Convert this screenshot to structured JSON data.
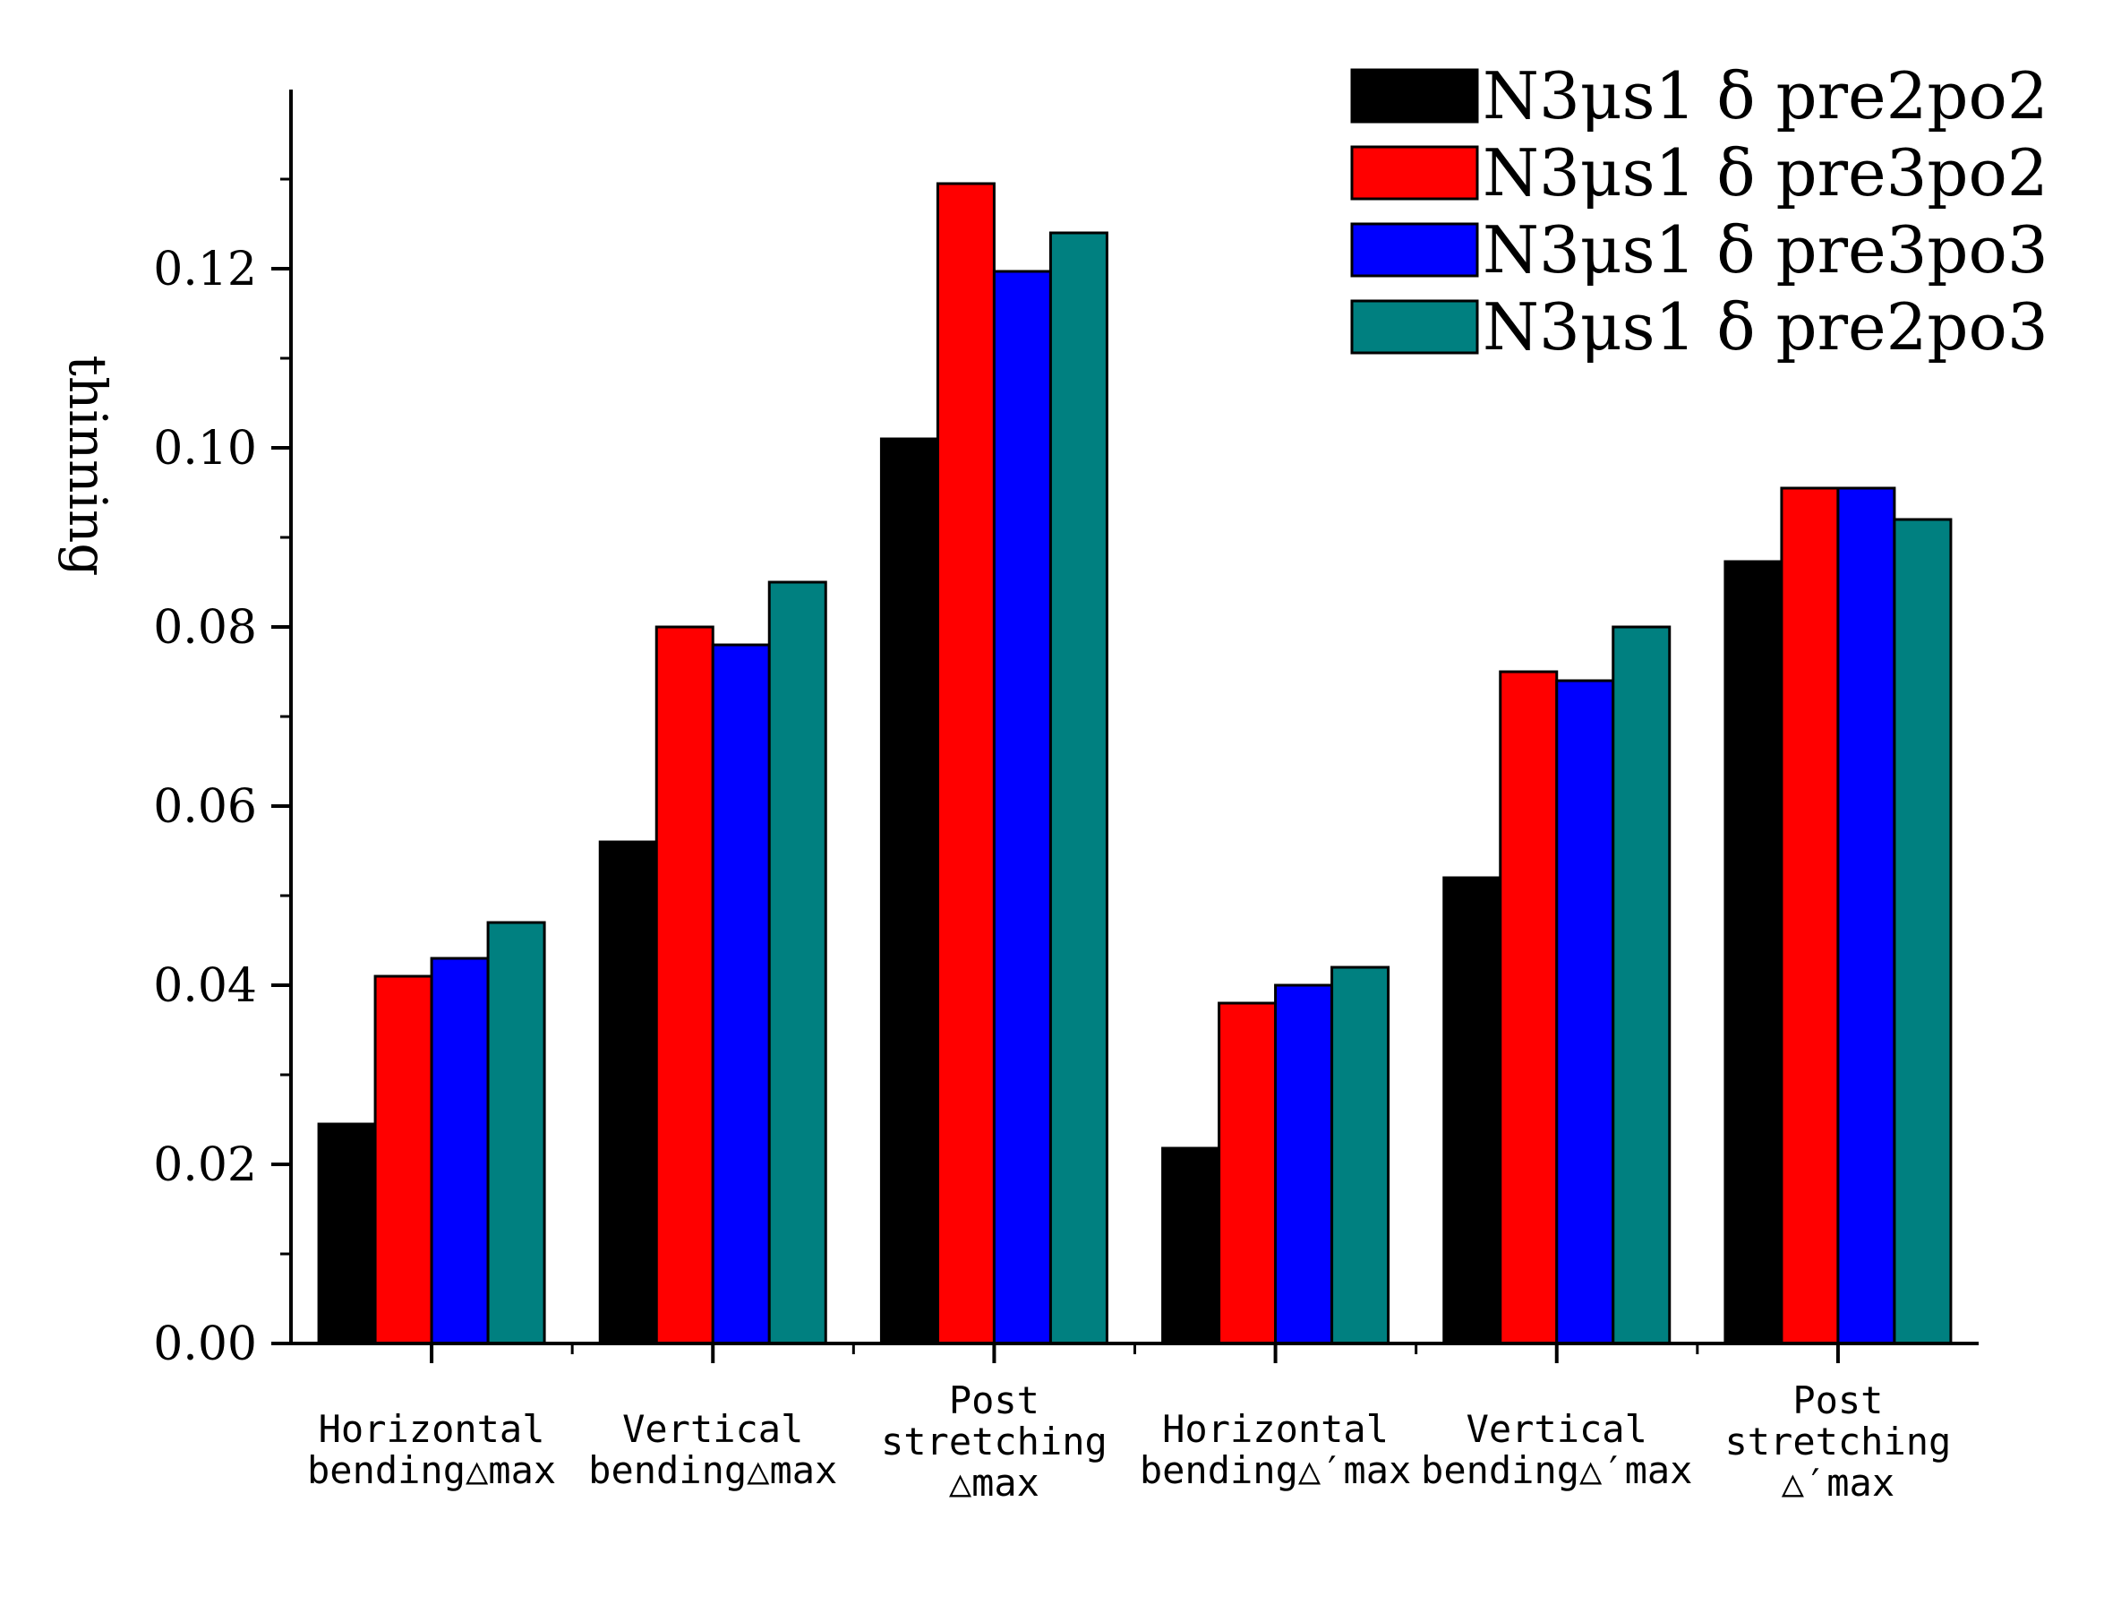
{
  "chart_data": {
    "type": "bar",
    "title": "",
    "xlabel": "",
    "ylabel": "thinning",
    "ylim": [
      0,
      0.14
    ],
    "yticks": [
      "0.00",
      "0.02",
      "0.04",
      "0.06",
      "0.08",
      "0.10",
      "0.12"
    ],
    "ytick_values": [
      0,
      0.02,
      0.04,
      0.06,
      0.08,
      0.1,
      0.12
    ],
    "categories": [
      {
        "lines": [
          "Horizontal",
          "bending△max"
        ]
      },
      {
        "lines": [
          "Vertical",
          "bending△max"
        ]
      },
      {
        "lines": [
          "Post",
          "stretching",
          "△max"
        ]
      },
      {
        "lines": [
          "Horizontal",
          "bending△′max"
        ]
      },
      {
        "lines": [
          "Vertical",
          "bending△′max"
        ]
      },
      {
        "lines": [
          "Post",
          "stretching",
          "△′max"
        ]
      }
    ],
    "series": [
      {
        "name": "N3μs1 δ pre2po2",
        "color": "#000000",
        "values": [
          0.0245,
          0.056,
          0.101,
          0.0218,
          0.052,
          0.0873
        ]
      },
      {
        "name": "N3μs1 δ pre3po2",
        "color": "#ff0000",
        "values": [
          0.041,
          0.08,
          0.1295,
          0.038,
          0.075,
          0.0955
        ]
      },
      {
        "name": "N3μs1 δ pre3po3",
        "color": "#0000ff",
        "values": [
          0.043,
          0.078,
          0.1197,
          0.04,
          0.074,
          0.0955
        ]
      },
      {
        "name": "N3μs1 δ pre2po3",
        "color": "#008080",
        "values": [
          0.047,
          0.085,
          0.124,
          0.042,
          0.08,
          0.092
        ]
      }
    ],
    "legend_position": "top-right",
    "grid": false
  }
}
